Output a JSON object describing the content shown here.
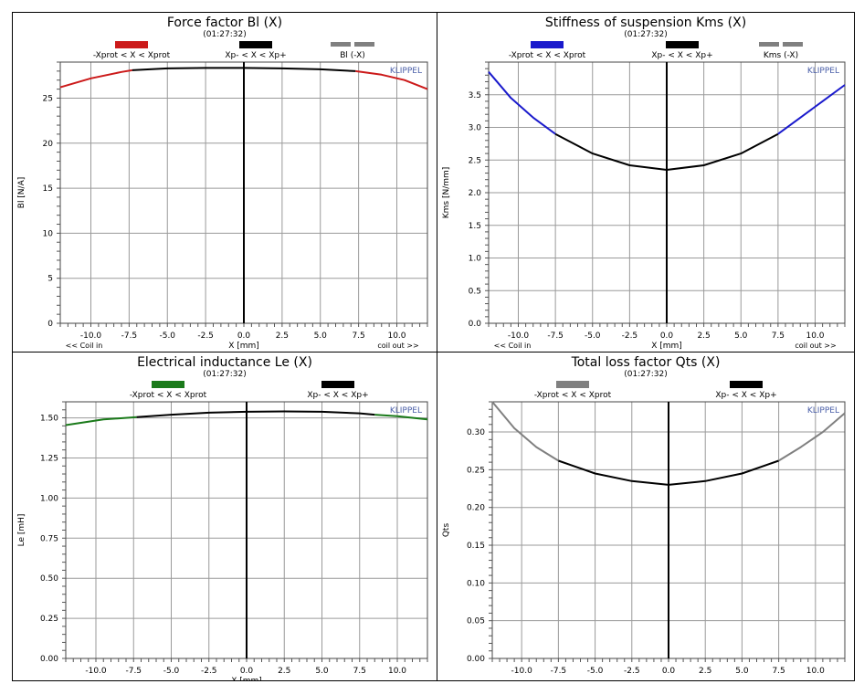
{
  "chart_data": [
    {
      "type": "line",
      "title": "Force factor Bl (X)",
      "subtitle": "(01:27:32)",
      "xlabel": "X [mm]",
      "ylabel": "Bl [N/A]",
      "x_left_note": "<< Coil in",
      "x_right_note": "coil out >>",
      "watermark": "KLIPPEL",
      "xlim": [
        -12,
        12
      ],
      "ylim": [
        0,
        29
      ],
      "xticks": [
        -10,
        -7.5,
        -5,
        -2.5,
        0,
        2.5,
        5,
        7.5,
        10
      ],
      "xtick_labels": [
        "-10.0",
        "-7.5",
        "-5.0",
        "-2.5",
        "0.0",
        "2.5",
        "5.0",
        "7.5",
        "10.0"
      ],
      "yticks": [
        0,
        5,
        10,
        15,
        20,
        25
      ],
      "ytick_labels": [
        "0",
        "5",
        "10",
        "15",
        "20",
        "25"
      ],
      "grid": true,
      "legend": [
        {
          "label": "-Xprot < X < Xprot",
          "color": "#cc1a1a"
        },
        {
          "label": "Xp- < X < Xp+",
          "color": "#000000"
        },
        {
          "label": "Bl (-X)",
          "color": "#808080",
          "dashed": true
        }
      ],
      "series": [
        {
          "color": "#cc1a1a",
          "x": [
            -12,
            -10,
            -8,
            -7.3
          ],
          "y": [
            26.2,
            27.2,
            27.9,
            28.1
          ]
        },
        {
          "color": "#000000",
          "x": [
            -7.3,
            -5,
            -2.5,
            0,
            2.5,
            5,
            7.3
          ],
          "y": [
            28.1,
            28.3,
            28.35,
            28.35,
            28.3,
            28.2,
            28.0
          ]
        },
        {
          "color": "#cc1a1a",
          "x": [
            7.3,
            9,
            10.5,
            12
          ],
          "y": [
            28.0,
            27.6,
            27.0,
            26.0
          ]
        }
      ]
    },
    {
      "type": "line",
      "title": "Stiffness of suspension Kms (X)",
      "subtitle": "(01:27:32)",
      "xlabel": "X [mm]",
      "ylabel": "Kms [N/mm]",
      "x_left_note": "<< Coil in",
      "x_right_note": "coil out >>",
      "watermark": "KLIPPEL",
      "xlim": [
        -12,
        12
      ],
      "ylim": [
        0,
        4.0
      ],
      "xticks": [
        -10,
        -7.5,
        -5,
        -2.5,
        0,
        2.5,
        5,
        7.5,
        10
      ],
      "xtick_labels": [
        "-10.0",
        "-7.5",
        "-5.0",
        "-2.5",
        "0.0",
        "2.5",
        "5.0",
        "7.5",
        "10.0"
      ],
      "yticks": [
        0,
        0.5,
        1.0,
        1.5,
        2.0,
        2.5,
        3.0,
        3.5
      ],
      "ytick_labels": [
        "0.0",
        "0.5",
        "1.0",
        "1.5",
        "2.0",
        "2.5",
        "3.0",
        "3.5"
      ],
      "grid": true,
      "legend": [
        {
          "label": "-Xprot < X < Xprot",
          "color": "#1a1acc"
        },
        {
          "label": "Xp- < X < Xp+",
          "color": "#000000"
        },
        {
          "label": "Kms (-X)",
          "color": "#808080",
          "dashed": true
        }
      ],
      "series": [
        {
          "color": "#1a1acc",
          "x": [
            -12,
            -10.5,
            -9,
            -7.5
          ],
          "y": [
            3.85,
            3.45,
            3.15,
            2.9
          ]
        },
        {
          "color": "#000000",
          "x": [
            -7.5,
            -5,
            -2.5,
            0,
            2.5,
            5,
            7.5
          ],
          "y": [
            2.9,
            2.6,
            2.42,
            2.35,
            2.42,
            2.6,
            2.9
          ]
        },
        {
          "color": "#1a1acc",
          "x": [
            7.5,
            9,
            10.5,
            12
          ],
          "y": [
            2.9,
            3.15,
            3.4,
            3.65
          ]
        }
      ]
    },
    {
      "type": "line",
      "title": "Electrical inductance Le (X)",
      "subtitle": "(01:27:32)",
      "xlabel": "X [mm]",
      "ylabel": "Le [mH]",
      "watermark": "KLIPPEL",
      "xlim": [
        -12,
        12
      ],
      "ylim": [
        0,
        1.6
      ],
      "xticks": [
        -10,
        -7.5,
        -5,
        -2.5,
        0,
        2.5,
        5,
        7.5,
        10
      ],
      "xtick_labels": [
        "-10.0",
        "-7.5",
        "-5.0",
        "-2.5",
        "0.0",
        "2.5",
        "5.0",
        "7.5",
        "10.0"
      ],
      "yticks": [
        0,
        0.25,
        0.5,
        0.75,
        1.0,
        1.25,
        1.5
      ],
      "ytick_labels": [
        "0.00",
        "0.25",
        "0.50",
        "0.75",
        "1.00",
        "1.25",
        "1.50"
      ],
      "grid": true,
      "legend": [
        {
          "label": "-Xprot < X < Xprot",
          "color": "#1a7a1a"
        },
        {
          "label": "Xp- < X < Xp+",
          "color": "#000000"
        }
      ],
      "series": [
        {
          "color": "#1a7a1a",
          "x": [
            -12,
            -9.5,
            -7.3
          ],
          "y": [
            1.455,
            1.49,
            1.505
          ]
        },
        {
          "color": "#000000",
          "x": [
            -7.3,
            -5,
            -2.5,
            0,
            2.5,
            5,
            7.5,
            8.5
          ],
          "y": [
            1.505,
            1.52,
            1.532,
            1.538,
            1.54,
            1.538,
            1.528,
            1.52
          ]
        },
        {
          "color": "#1a7a1a",
          "x": [
            8.5,
            10,
            12
          ],
          "y": [
            1.52,
            1.51,
            1.49
          ]
        }
      ]
    },
    {
      "type": "line",
      "title": "Total loss factor Qts (X)",
      "subtitle": "(01:27:32)",
      "ylabel": "Qts",
      "watermark": "KLIPPEL",
      "xlim": [
        -12,
        12
      ],
      "ylim": [
        0,
        0.34
      ],
      "xticks": [
        -10,
        -7.5,
        -5,
        -2.5,
        0,
        2.5,
        5,
        7.5,
        10
      ],
      "xtick_labels": [
        "-10.0",
        "-7.5",
        "-5.0",
        "-2.5",
        "0.0",
        "2.5",
        "5.0",
        "7.5",
        "10.0"
      ],
      "yticks": [
        0,
        0.05,
        0.1,
        0.15,
        0.2,
        0.25,
        0.3
      ],
      "ytick_labels": [
        "0.00",
        "0.05",
        "0.10",
        "0.15",
        "0.20",
        "0.25",
        "0.30"
      ],
      "grid": true,
      "legend": [
        {
          "label": "-Xprot < X < Xprot",
          "color": "#808080"
        },
        {
          "label": "Xp- < X < Xp+",
          "color": "#000000"
        }
      ],
      "series": [
        {
          "color": "#808080",
          "x": [
            -12,
            -10.5,
            -9,
            -7.5
          ],
          "y": [
            0.34,
            0.305,
            0.28,
            0.262
          ]
        },
        {
          "color": "#000000",
          "x": [
            -7.5,
            -5,
            -2.5,
            0,
            2.5,
            5,
            7.5
          ],
          "y": [
            0.262,
            0.245,
            0.235,
            0.23,
            0.235,
            0.245,
            0.262
          ]
        },
        {
          "color": "#808080",
          "x": [
            7.5,
            9,
            10.5,
            12
          ],
          "y": [
            0.262,
            0.28,
            0.3,
            0.325
          ]
        }
      ]
    }
  ]
}
